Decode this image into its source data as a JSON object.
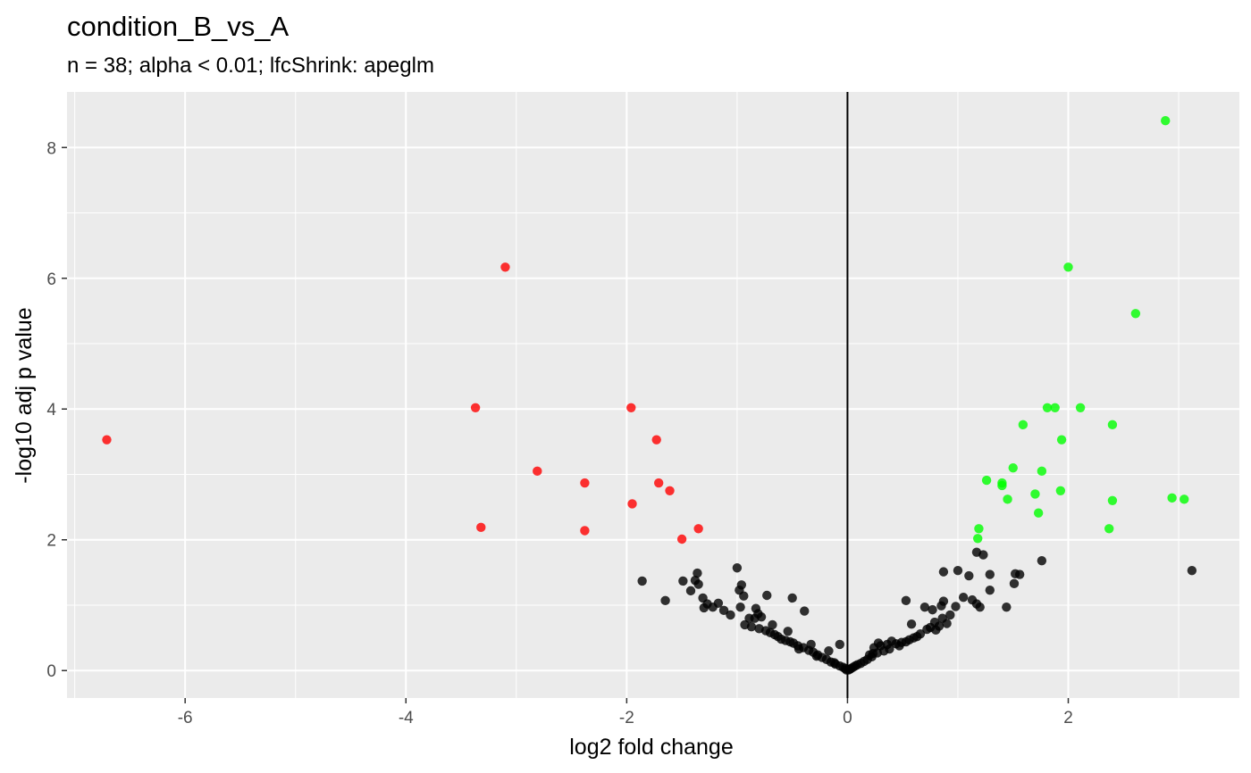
{
  "chart_data": {
    "type": "scatter",
    "title": "condition_B_vs_A",
    "subtitle": "n = 38; alpha < 0.01; lfcShrink: apeglm",
    "xlabel": "log2 fold change",
    "ylabel": "-log10 adj p value",
    "xlim": [
      -7.07,
      3.55
    ],
    "ylim": [
      -0.42,
      8.85
    ],
    "x_ticks": [
      -6,
      -4,
      -2,
      0,
      2
    ],
    "y_ticks": [
      0,
      2,
      4,
      6,
      8
    ],
    "x_tick_labels": [
      "-6",
      "-4",
      "-2",
      "0",
      "2"
    ],
    "y_tick_labels": [
      "0",
      "2",
      "4",
      "6",
      "8"
    ],
    "vline_x": 0,
    "grid": true,
    "background": "#ebebeb",
    "colors": {
      "down": "#ff0000",
      "up": "#00ff00",
      "ns": "#000000"
    },
    "series": [
      {
        "color_key": "down",
        "points": [
          [
            -6.71,
            3.53
          ],
          [
            -3.1,
            6.17
          ],
          [
            -3.37,
            4.02
          ],
          [
            -3.32,
            2.19
          ],
          [
            -2.81,
            3.05
          ],
          [
            -2.38,
            2.87
          ],
          [
            -2.38,
            2.14
          ],
          [
            -1.96,
            4.02
          ],
          [
            -1.95,
            2.55
          ],
          [
            -1.73,
            3.53
          ],
          [
            -1.71,
            2.87
          ],
          [
            -1.61,
            2.75
          ],
          [
            -1.5,
            2.01
          ],
          [
            -1.35,
            2.17
          ]
        ]
      },
      {
        "color_key": "up",
        "points": [
          [
            2.88,
            8.41
          ],
          [
            2.0,
            6.17
          ],
          [
            2.61,
            5.46
          ],
          [
            1.81,
            4.02
          ],
          [
            1.88,
            4.02
          ],
          [
            2.11,
            4.02
          ],
          [
            1.59,
            3.76
          ],
          [
            2.4,
            3.76
          ],
          [
            1.94,
            3.53
          ],
          [
            1.5,
            3.1
          ],
          [
            1.76,
            3.05
          ],
          [
            1.26,
            2.91
          ],
          [
            1.4,
            2.87
          ],
          [
            1.4,
            2.83
          ],
          [
            1.7,
            2.7
          ],
          [
            1.93,
            2.75
          ],
          [
            1.45,
            2.62
          ],
          [
            2.94,
            2.64
          ],
          [
            3.05,
            2.62
          ],
          [
            2.4,
            2.6
          ],
          [
            1.73,
            2.41
          ],
          [
            2.37,
            2.17
          ],
          [
            1.19,
            2.17
          ],
          [
            1.18,
            2.02
          ]
        ]
      },
      {
        "color_key": "ns",
        "points": [
          [
            3.12,
            1.53
          ],
          [
            1.76,
            1.68
          ],
          [
            1.17,
            1.81
          ],
          [
            1.23,
            1.77
          ],
          [
            0.87,
            1.51
          ],
          [
            1.0,
            1.53
          ],
          [
            1.1,
            1.45
          ],
          [
            1.29,
            1.47
          ],
          [
            1.52,
            1.48
          ],
          [
            1.56,
            1.47
          ],
          [
            1.51,
            1.33
          ],
          [
            1.29,
            1.23
          ],
          [
            1.05,
            1.12
          ],
          [
            1.13,
            1.08
          ],
          [
            1.17,
            1.02
          ],
          [
            1.2,
            0.97
          ],
          [
            0.98,
            0.98
          ],
          [
            1.44,
            0.97
          ],
          [
            0.53,
            1.07
          ],
          [
            0.7,
            0.97
          ],
          [
            0.77,
            0.93
          ],
          [
            0.85,
            0.99
          ],
          [
            0.87,
            1.06
          ],
          [
            0.93,
            0.85
          ],
          [
            0.9,
            0.72
          ],
          [
            0.83,
            0.68
          ],
          [
            0.8,
            0.62
          ],
          [
            0.75,
            0.66
          ],
          [
            0.72,
            0.63
          ],
          [
            0.66,
            0.56
          ],
          [
            0.6,
            0.5
          ],
          [
            0.56,
            0.47
          ],
          [
            0.53,
            0.44
          ],
          [
            0.47,
            0.38
          ],
          [
            0.44,
            0.41
          ],
          [
            0.38,
            0.33
          ],
          [
            0.33,
            0.3
          ],
          [
            0.3,
            0.38
          ],
          [
            0.27,
            0.27
          ],
          [
            0.23,
            0.26
          ],
          [
            0.22,
            0.21
          ],
          [
            0.18,
            0.17
          ],
          [
            0.15,
            0.14
          ],
          [
            0.12,
            0.11
          ],
          [
            0.09,
            0.09
          ],
          [
            0.07,
            0.07
          ],
          [
            0.05,
            0.05
          ],
          [
            0.03,
            0.03
          ],
          [
            0.01,
            0.01
          ],
          [
            0.02,
            0.02
          ],
          [
            0.24,
            0.35
          ],
          [
            0.36,
            0.4
          ],
          [
            0.49,
            0.43
          ],
          [
            0.63,
            0.52
          ],
          [
            0.79,
            0.74
          ],
          [
            0.86,
            0.8
          ],
          [
            0.4,
            0.45
          ],
          [
            0.2,
            0.24
          ],
          [
            0.28,
            0.42
          ],
          [
            0.58,
            0.71
          ],
          [
            -1.0,
            1.57
          ],
          [
            -1.36,
            1.49
          ],
          [
            -1.35,
            1.32
          ],
          [
            -1.49,
            1.37
          ],
          [
            -1.38,
            1.38
          ],
          [
            -1.86,
            1.37
          ],
          [
            -0.96,
            1.31
          ],
          [
            -0.98,
            1.23
          ],
          [
            -1.31,
            1.11
          ],
          [
            -1.42,
            1.22
          ],
          [
            -1.65,
            1.07
          ],
          [
            -1.27,
            1.02
          ],
          [
            -1.17,
            1.03
          ],
          [
            -0.94,
            1.14
          ],
          [
            -0.73,
            1.15
          ],
          [
            -0.5,
            1.11
          ],
          [
            -0.97,
            0.97
          ],
          [
            -0.83,
            0.95
          ],
          [
            -1.12,
            0.92
          ],
          [
            -1.06,
            0.85
          ],
          [
            -0.89,
            0.8
          ],
          [
            -0.84,
            0.8
          ],
          [
            -0.78,
            0.82
          ],
          [
            -0.39,
            0.91
          ],
          [
            -0.93,
            0.7
          ],
          [
            -0.87,
            0.67
          ],
          [
            -0.8,
            0.64
          ],
          [
            -0.74,
            0.61
          ],
          [
            -0.7,
            0.58
          ],
          [
            -0.66,
            0.55
          ],
          [
            -0.63,
            0.52
          ],
          [
            -0.6,
            0.48
          ],
          [
            -0.56,
            0.46
          ],
          [
            -0.52,
            0.44
          ],
          [
            -0.49,
            0.42
          ],
          [
            -0.45,
            0.38
          ],
          [
            -0.4,
            0.35
          ],
          [
            -0.35,
            0.31
          ],
          [
            -0.31,
            0.28
          ],
          [
            -0.27,
            0.24
          ],
          [
            -0.23,
            0.2
          ],
          [
            -0.19,
            0.17
          ],
          [
            -0.15,
            0.13
          ],
          [
            -0.11,
            0.1
          ],
          [
            -0.07,
            0.07
          ],
          [
            -0.04,
            0.05
          ],
          [
            -0.02,
            0.03
          ],
          [
            -0.01,
            0.01
          ],
          [
            -0.33,
            0.4
          ],
          [
            -0.07,
            0.4
          ],
          [
            -0.17,
            0.3
          ],
          [
            -0.54,
            0.6
          ],
          [
            -0.68,
            0.7
          ],
          [
            -0.81,
            0.87
          ],
          [
            -1.22,
            0.97
          ],
          [
            -1.3,
            0.96
          ],
          [
            -0.28,
            0.22
          ],
          [
            -0.12,
            0.12
          ],
          [
            -0.44,
            0.33
          ]
        ]
      }
    ]
  }
}
